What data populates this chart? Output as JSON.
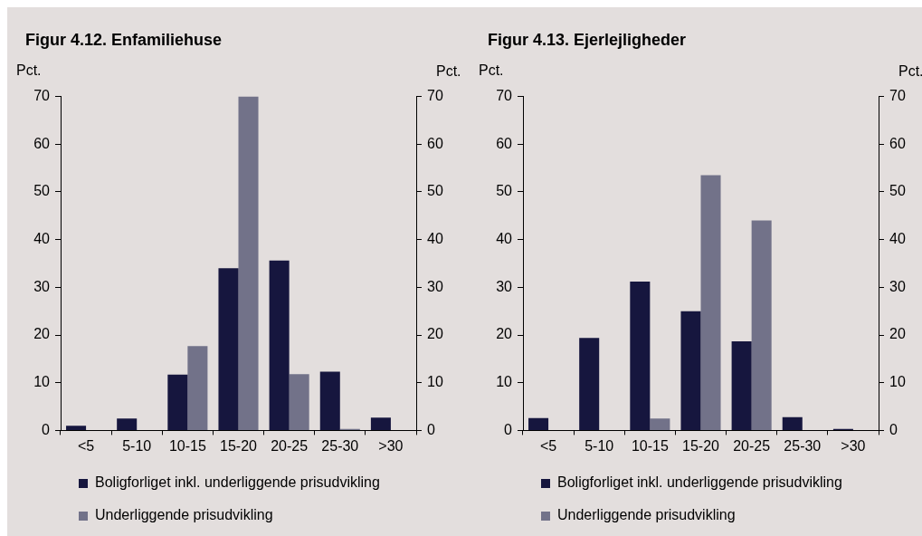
{
  "chart_data": [
    {
      "type": "bar",
      "title": "Figur 4.12. Enfamiliehuse",
      "ylabel": "Pct.",
      "y2label": "Pct.",
      "categories": [
        "<5",
        "5-10",
        "10-15",
        "15-20",
        "20-25",
        "25-30",
        ">30"
      ],
      "series": [
        {
          "name": "Boligforliget inkl. underliggende prisudvikling",
          "color": "#16163e",
          "values": [
            1.0,
            2.5,
            11.7,
            34.0,
            35.6,
            12.3,
            2.7
          ]
        },
        {
          "name": "Underliggende prisudvikling",
          "color": "#727289",
          "values": [
            null,
            null,
            17.7,
            70.0,
            11.8,
            0.3,
            null
          ]
        }
      ],
      "ylim": [
        0,
        70
      ],
      "yticks": [
        0,
        10,
        20,
        30,
        40,
        50,
        60,
        70
      ],
      "y2lim": [
        0,
        70
      ],
      "y2ticks": [
        0,
        10,
        20,
        30,
        40,
        50,
        60,
        70
      ],
      "legend": "bottom"
    },
    {
      "type": "bar",
      "title": "Figur 4.13. Ejerlejligheder",
      "ylabel": "Pct.",
      "y2label": "Pct.",
      "categories": [
        "<5",
        "5-10",
        "10-15",
        "15-20",
        "20-25",
        "25-30",
        ">30"
      ],
      "series": [
        {
          "name": "Boligforliget inkl. underliggende prisudvikling",
          "color": "#16163e",
          "values": [
            2.6,
            19.4,
            31.2,
            25.0,
            18.7,
            2.8,
            0.3
          ]
        },
        {
          "name": "Underliggende prisudvikling",
          "color": "#727289",
          "values": [
            null,
            null,
            2.5,
            53.5,
            44.0,
            null,
            null
          ]
        }
      ],
      "ylim": [
        0,
        70
      ],
      "yticks": [
        0,
        10,
        20,
        30,
        40,
        50,
        60,
        70
      ],
      "y2lim": [
        0,
        70
      ],
      "y2ticks": [
        0,
        10,
        20,
        30,
        40,
        50,
        60,
        70
      ],
      "legend": "bottom"
    }
  ]
}
